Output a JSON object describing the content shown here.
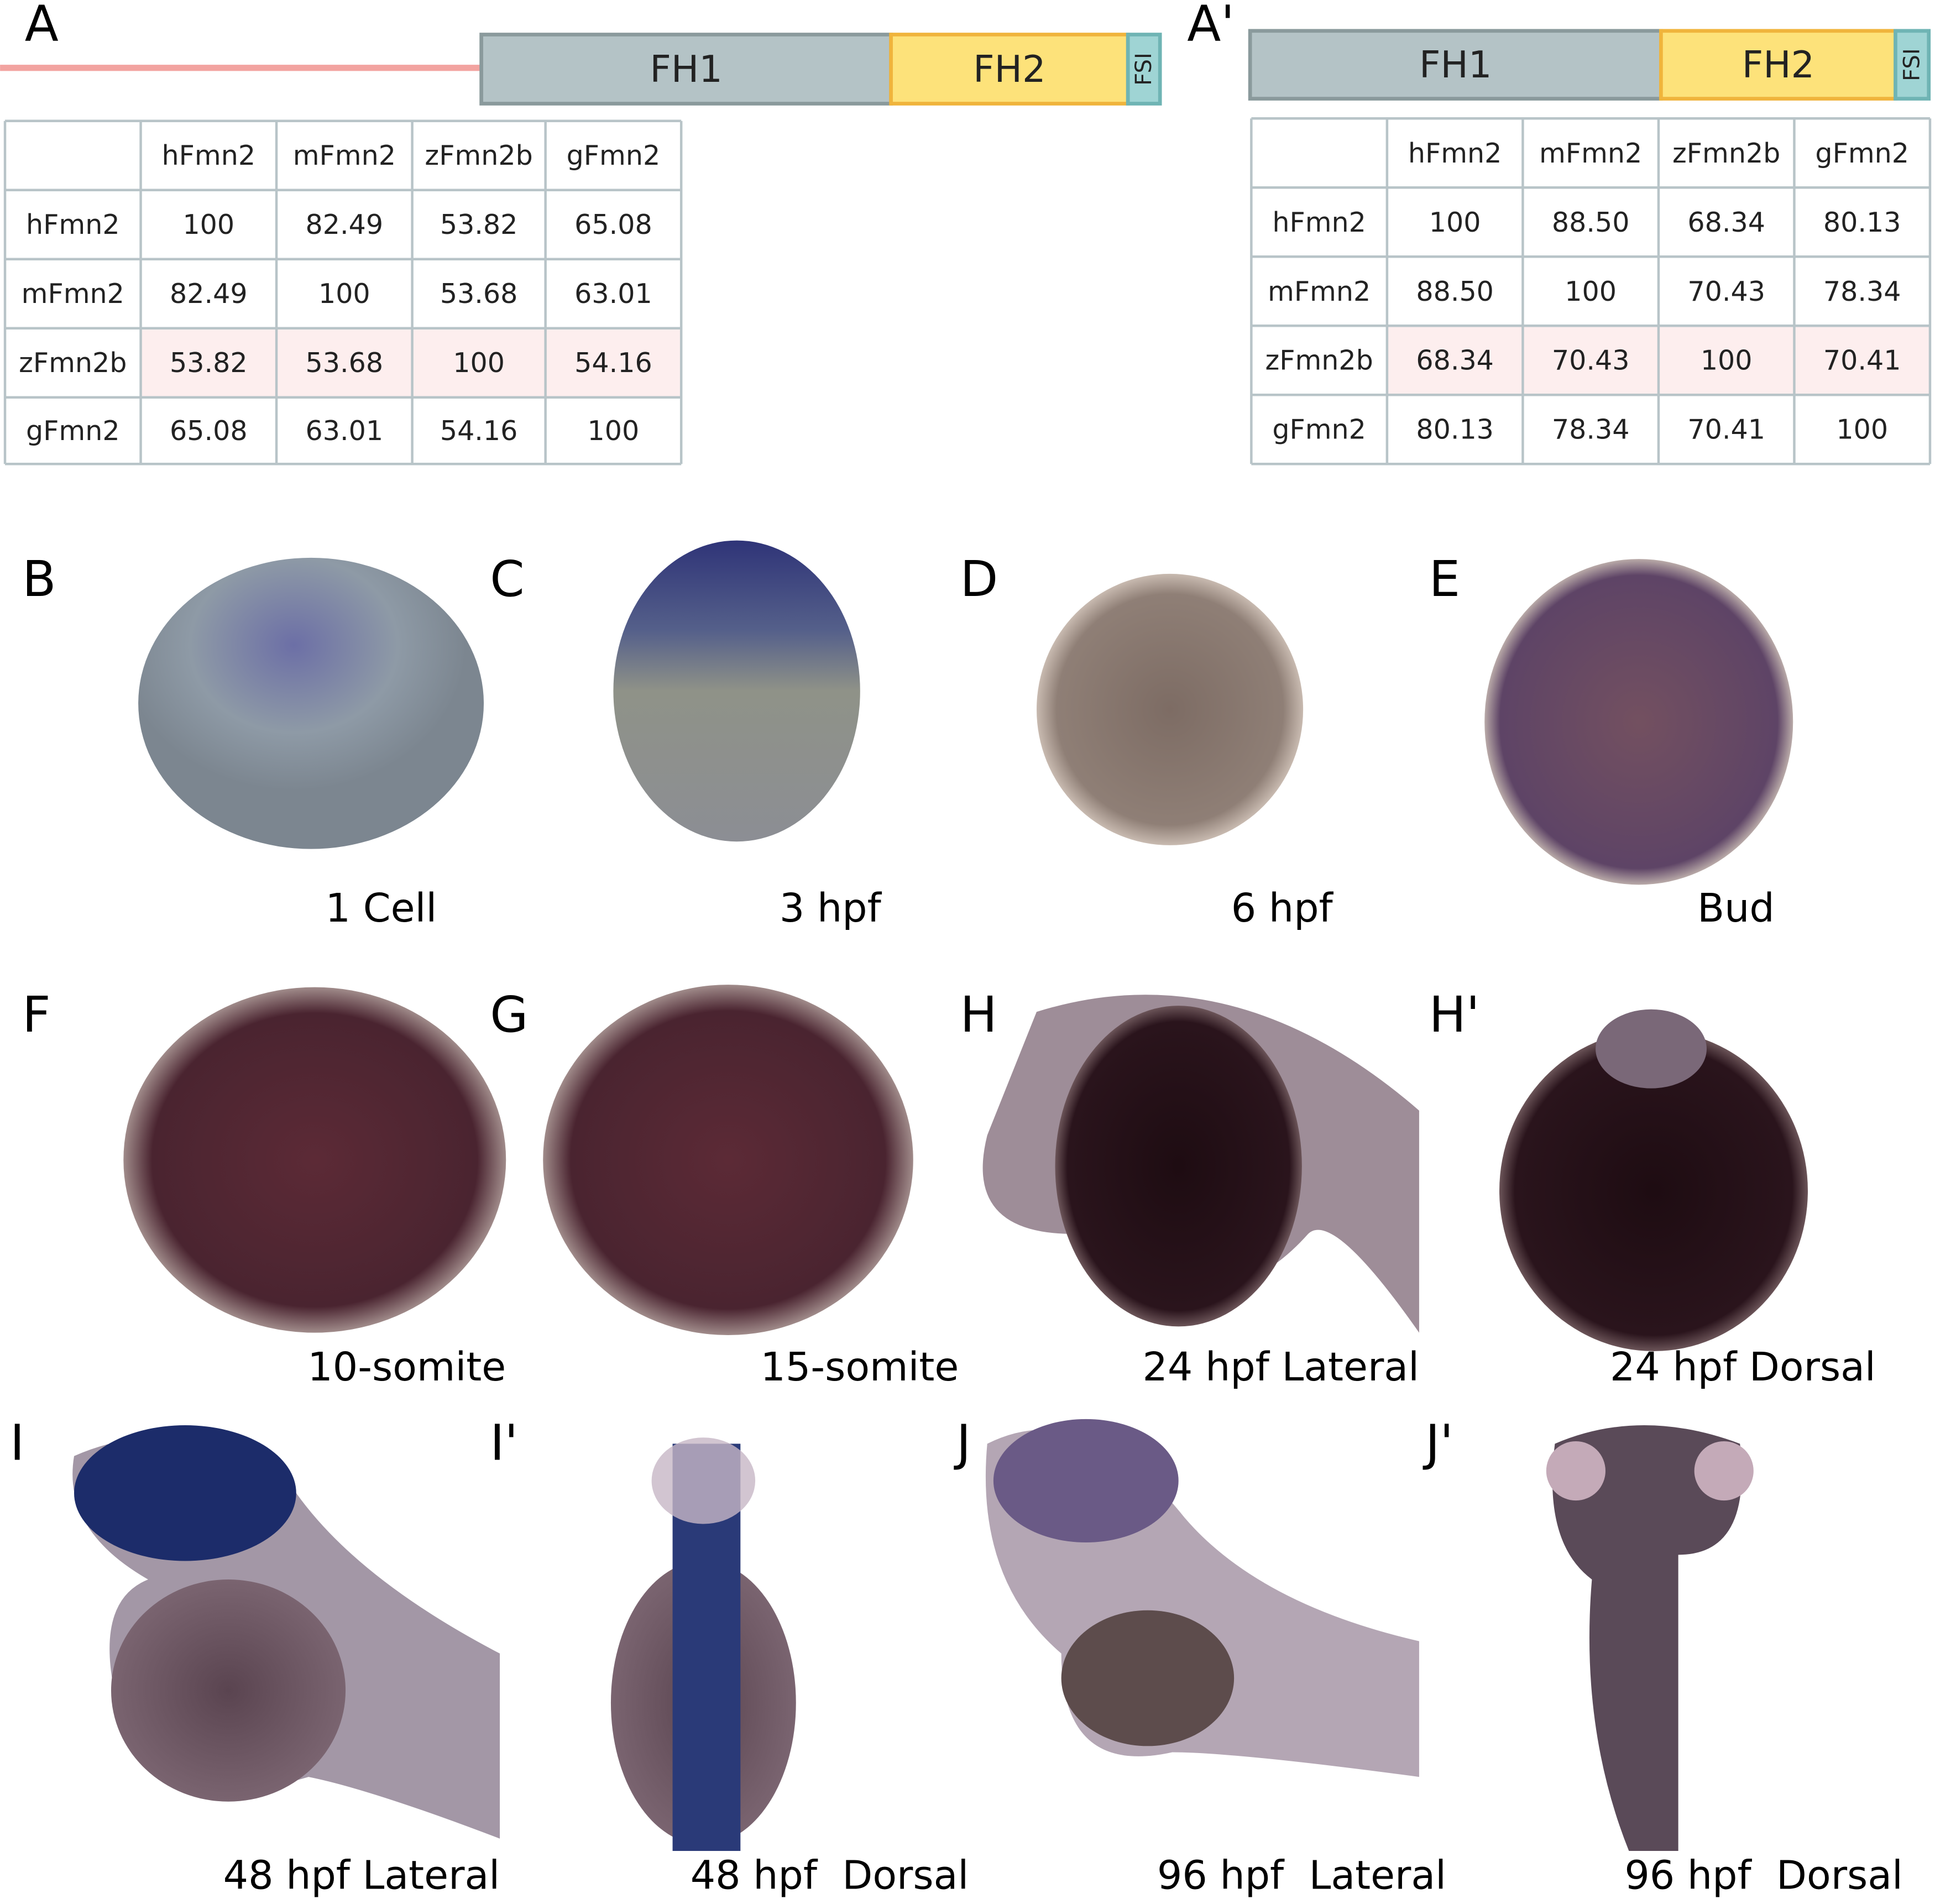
{
  "tables": [
    {
      "label": "A",
      "domains": [
        "FH1",
        "FH2",
        "FSI"
      ],
      "columns": [
        "hFmn2",
        "mFmn2",
        "zFmn2b",
        "gFmn2"
      ],
      "rows": [
        {
          "name": "hFmn2",
          "cells": [
            "100",
            "82.49",
            "53.82",
            "65.08"
          ]
        },
        {
          "name": "mFmn2",
          "cells": [
            "82.49",
            "100",
            "53.68",
            "63.01"
          ]
        },
        {
          "name": "zFmn2b",
          "cells": [
            "53.82",
            "53.68",
            "100",
            "54.16"
          ]
        },
        {
          "name": "gFmn2",
          "cells": [
            "65.08",
            "63.01",
            "54.16",
            "100"
          ]
        }
      ]
    },
    {
      "label": "A'",
      "domains": [
        "FH1",
        "FH2",
        "FSI"
      ],
      "columns": [
        "hFmn2",
        "mFmn2",
        "zFmn2b",
        "gFmn2"
      ],
      "rows": [
        {
          "name": "hFmn2",
          "cells": [
            "100",
            "88.50",
            "68.34",
            "80.13"
          ]
        },
        {
          "name": "mFmn2",
          "cells": [
            "88.50",
            "100",
            "70.43",
            "78.34"
          ]
        },
        {
          "name": "zFmn2b",
          "cells": [
            "68.34",
            "70.43",
            "100",
            "70.41"
          ]
        },
        {
          "name": "gFmn2",
          "cells": [
            "80.13",
            "78.34",
            "70.41",
            "100"
          ]
        }
      ]
    }
  ],
  "panels": [
    {
      "label": "B",
      "caption": "1 Cell"
    },
    {
      "label": "C",
      "caption": "3 hpf"
    },
    {
      "label": "D",
      "caption": "6 hpf"
    },
    {
      "label": "E",
      "caption": "Bud"
    },
    {
      "label": "F",
      "caption": "10-somite"
    },
    {
      "label": "G",
      "caption": "15-somite"
    },
    {
      "label": "H",
      "caption": "24 hpf Lateral"
    },
    {
      "label": "H'",
      "caption": "24 hpf Dorsal"
    },
    {
      "label": "I",
      "caption": "48 hpf Lateral"
    },
    {
      "label": "I'",
      "caption": "48 hpf  Dorsal"
    },
    {
      "label": "J",
      "caption": "96 hpf  Lateral"
    },
    {
      "label": "J'",
      "caption": "96 hpf  Dorsal"
    }
  ]
}
